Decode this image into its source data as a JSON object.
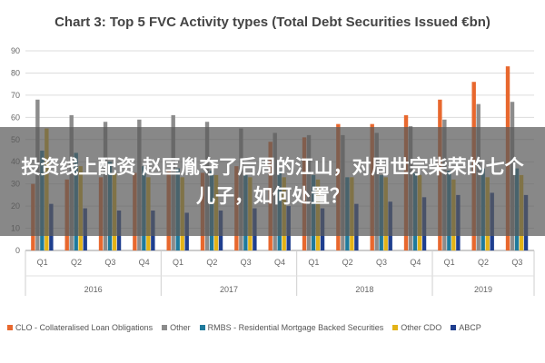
{
  "banner": {
    "text": "投资线上配资 赵匡胤夺了后周的江山，对周世宗柴荣的七个儿子，如何处置？"
  },
  "chart_data": {
    "type": "bar",
    "title": "Chart 3: Top 5 FVC Activity types (Total Debt Securities Issued €bn)",
    "xlabel": "",
    "ylabel": "",
    "ylim": [
      0,
      90
    ],
    "yticks": [
      0,
      10,
      20,
      30,
      40,
      50,
      60,
      70,
      80,
      90
    ],
    "grid": true,
    "legend_position": "bottom",
    "categories": [
      "Q1",
      "Q2",
      "Q3",
      "Q4",
      "Q1",
      "Q2",
      "Q3",
      "Q4",
      "Q1",
      "Q2",
      "Q3",
      "Q4",
      "Q1",
      "Q2",
      "Q3"
    ],
    "groups": [
      {
        "label": "2016",
        "count": 4
      },
      {
        "label": "2017",
        "count": 4
      },
      {
        "label": "2018",
        "count": 4
      },
      {
        "label": "2019",
        "count": 3
      }
    ],
    "series": [
      {
        "name": "CLO - Collateralised Loan Obligations",
        "color": "#e8682e",
        "values": [
          30,
          32,
          33,
          35,
          36,
          35,
          38,
          49,
          51,
          57,
          57,
          61,
          68,
          76,
          83
        ]
      },
      {
        "name": "Other",
        "color": "#8c8c8c",
        "values": [
          68,
          61,
          58,
          59,
          61,
          58,
          55,
          53,
          52,
          52,
          53,
          56,
          59,
          66,
          67
        ]
      },
      {
        "name": "RMBS - Residential Mortgage Backed Securities",
        "color": "#1f7a9c",
        "values": [
          45,
          44,
          40,
          38,
          37,
          36,
          34,
          36,
          34,
          33,
          34,
          35,
          36,
          37,
          37
        ]
      },
      {
        "name": "Other CDO",
        "color": "#e3b317",
        "values": [
          55,
          38,
          35,
          33,
          33,
          34,
          33,
          33,
          32,
          33,
          33,
          34,
          32,
          33,
          34
        ]
      },
      {
        "name": "ABCP",
        "color": "#1f3f8f",
        "values": [
          21,
          19,
          18,
          18,
          17,
          18,
          19,
          20,
          19,
          21,
          22,
          24,
          25,
          26,
          25
        ]
      }
    ]
  }
}
